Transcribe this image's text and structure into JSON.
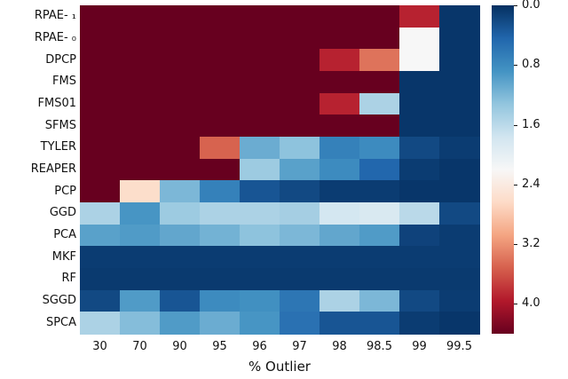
{
  "chart_data": {
    "type": "heatmap",
    "title": "",
    "xlabel": "% Outlier",
    "ylabel": "",
    "columns": [
      "30",
      "70",
      "90",
      "95",
      "96",
      "97",
      "98",
      "98.5",
      "99",
      "99.5"
    ],
    "rows": [
      "RPAE- ₁",
      "RPAE- ₀",
      "DPCP",
      "FMS",
      "FMS01",
      "SFMS",
      "TYLER",
      "REAPER",
      "PCP",
      "GGD",
      "PCA",
      "MKF",
      "RF",
      "SGGD",
      "SPCA"
    ],
    "values": [
      [
        4.4,
        4.4,
        4.4,
        4.4,
        4.4,
        4.4,
        4.4,
        4.4,
        3.9,
        0.05
      ],
      [
        4.4,
        4.4,
        4.4,
        4.4,
        4.4,
        4.4,
        4.4,
        4.4,
        2.2,
        0.05
      ],
      [
        4.4,
        4.4,
        4.4,
        4.4,
        4.4,
        4.4,
        3.9,
        3.4,
        2.2,
        0.05
      ],
      [
        4.4,
        4.4,
        4.4,
        4.4,
        4.4,
        4.4,
        4.4,
        4.4,
        0.05,
        0.05
      ],
      [
        4.4,
        4.4,
        4.4,
        4.4,
        4.4,
        4.4,
        3.9,
        1.5,
        0.05,
        0.05
      ],
      [
        4.4,
        4.4,
        4.4,
        4.4,
        4.4,
        4.4,
        4.4,
        4.4,
        0.05,
        0.05
      ],
      [
        4.4,
        4.4,
        4.4,
        3.5,
        1.1,
        1.3,
        0.7,
        0.8,
        0.2,
        0.1
      ],
      [
        4.4,
        4.4,
        4.4,
        4.4,
        1.4,
        1.0,
        0.8,
        0.45,
        0.1,
        0.05
      ],
      [
        4.4,
        2.6,
        1.2,
        0.7,
        0.3,
        0.2,
        0.1,
        0.1,
        0.05,
        0.05
      ],
      [
        1.5,
        0.9,
        1.4,
        1.5,
        1.5,
        1.45,
        1.8,
        1.85,
        1.6,
        0.2
      ],
      [
        1.0,
        0.95,
        1.05,
        1.15,
        1.3,
        1.2,
        1.05,
        0.95,
        0.15,
        0.1
      ],
      [
        0.1,
        0.1,
        0.1,
        0.1,
        0.1,
        0.1,
        0.1,
        0.1,
        0.1,
        0.1
      ],
      [
        0.08,
        0.08,
        0.08,
        0.08,
        0.08,
        0.08,
        0.08,
        0.08,
        0.08,
        0.08
      ],
      [
        0.2,
        0.95,
        0.3,
        0.8,
        0.85,
        0.6,
        1.5,
        1.2,
        0.2,
        0.1
      ],
      [
        1.5,
        1.25,
        0.95,
        1.1,
        0.9,
        0.55,
        0.3,
        0.3,
        0.1,
        0.05
      ]
    ],
    "vmin": 0.0,
    "vmax": 4.4,
    "grid": false,
    "legend": "none",
    "colorbar": {
      "orientation": "vertical",
      "position": "right",
      "reversed_axis": true,
      "ticks": [
        "0.0",
        "0.8",
        "1.6",
        "2.4",
        "3.2",
        "4.0"
      ],
      "tick_values": [
        0.0,
        0.8,
        1.6,
        2.4,
        3.2,
        4.0
      ]
    },
    "colormap": {
      "name": "RdBu_r",
      "stops": [
        "#053061",
        "#2166ac",
        "#4393c3",
        "#92c5de",
        "#d1e5f0",
        "#f7f7f7",
        "#fddbc7",
        "#f4a582",
        "#d6604d",
        "#b2182b",
        "#67001f"
      ]
    }
  }
}
